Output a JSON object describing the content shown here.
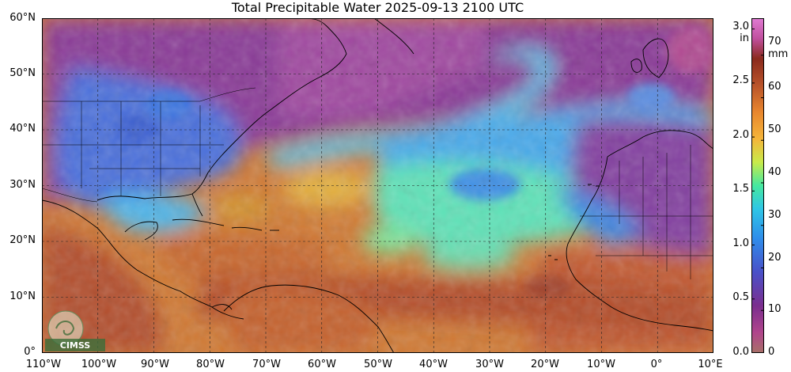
{
  "title": "Total Precipitable Water  2025-09-13 2100 UTC",
  "lat_ticks": [
    "60°N",
    "50°N",
    "40°N",
    "30°N",
    "20°N",
    "10°N",
    "0°"
  ],
  "lon_ticks": [
    "110°W",
    "100°W",
    "90°W",
    "80°W",
    "70°W",
    "60°W",
    "50°W",
    "40°W",
    "30°W",
    "20°W",
    "10°W",
    "0°",
    "10°E"
  ],
  "colorbar": {
    "inch_unit": "in",
    "mm_unit": "mm",
    "inch_ticks": [
      "3.0",
      "2.5",
      "2.0",
      "1.5",
      "1.0",
      "0.5",
      "0.0"
    ],
    "mm_ticks": [
      "70",
      "60",
      "50",
      "40",
      "30",
      "20",
      "10",
      "0"
    ],
    "range_in": [
      0.0,
      3.1
    ],
    "range_mm": [
      0,
      78.7
    ]
  },
  "logo": {
    "text": "CIMSS"
  },
  "palette": {
    "dry": "#7b2e8e",
    "very_dry": "#b0458c",
    "low": "#4a63d6",
    "mid_low": "#2fa7ec",
    "mid": "#46e8c0",
    "mid_high": "#c9ea4a",
    "high": "#f5a93a",
    "very_high": "#b9532a",
    "max": "#e07ad2"
  }
}
